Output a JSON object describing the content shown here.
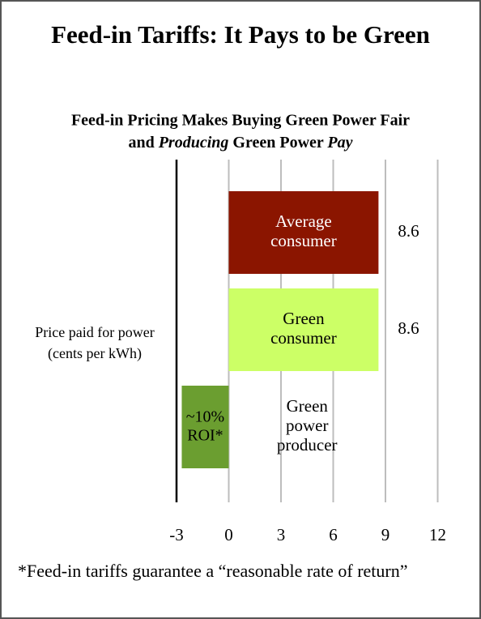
{
  "chart_data": {
    "type": "barh",
    "title": "Feed-in Tariffs: It Pays to be Green",
    "subtitle_line1": "Feed-in Pricing Makes Buying Green Power Fair",
    "subtitle_line2": [
      "and ",
      "Producing",
      " Green Power ",
      "Pay"
    ],
    "y_label": [
      "Price paid for power",
      "(cents per kWh)"
    ],
    "categories": [
      "Average consumer",
      "Green consumer",
      "Green power producer"
    ],
    "values": [
      8.6,
      8.6,
      -2.7
    ],
    "value_labels": [
      "8.6",
      "8.6",
      null
    ],
    "colors": [
      "#8b1500",
      "#ccff66",
      "#6b9e30"
    ],
    "label_colors": [
      "#ffffff",
      "#000000",
      "#000000"
    ],
    "annotation": "~10% ROI*",
    "xlim": [
      -3,
      13
    ],
    "xticks": [
      -3,
      0,
      3,
      6,
      9,
      12
    ],
    "grid": true,
    "footnote": "*Feed-in tariffs guarantee a “reasonable rate of return”"
  }
}
